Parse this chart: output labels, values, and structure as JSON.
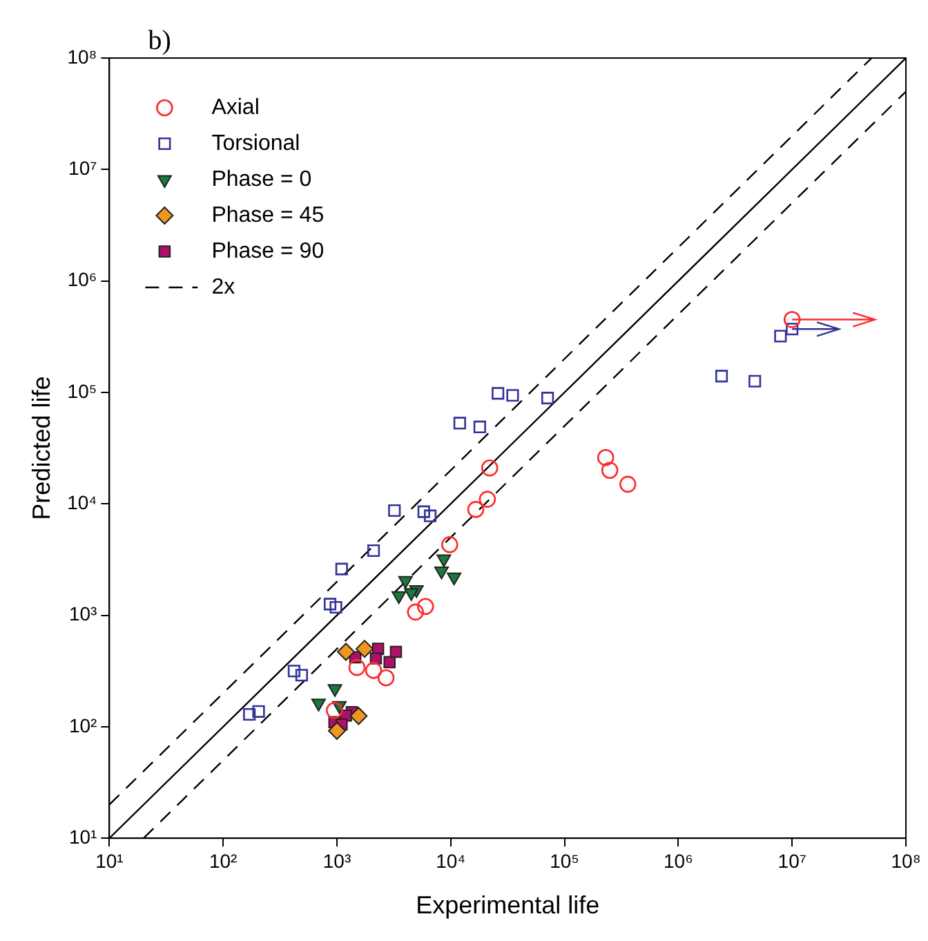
{
  "chart_data": {
    "type": "scatter",
    "title": "b)",
    "xlabel": "Experimental life",
    "ylabel": "Predicted life",
    "log": "xy",
    "legend": "top left",
    "grid": false,
    "xlim": [
      10,
      100000000
    ],
    "ylim": [
      10,
      100000000
    ],
    "xticks": [
      {
        "value": 10,
        "label": "10¹"
      },
      {
        "value": 100,
        "label": "10²"
      },
      {
        "value": 1000,
        "label": "10³"
      },
      {
        "value": 10000,
        "label": "10⁴"
      },
      {
        "value": 100000,
        "label": "10⁵"
      },
      {
        "value": 1000000,
        "label": "10⁶"
      },
      {
        "value": 10000000,
        "label": "10⁷"
      },
      {
        "value": 100000000,
        "label": "10⁸"
      }
    ],
    "yticks": [
      {
        "value": 10,
        "label": "10¹"
      },
      {
        "value": 100,
        "label": "10²"
      },
      {
        "value": 1000,
        "label": "10³"
      },
      {
        "value": 10000,
        "label": "10⁴"
      },
      {
        "value": 100000,
        "label": "10⁵"
      },
      {
        "value": 1000000,
        "label": "10⁶"
      },
      {
        "value": 10000000,
        "label": "10⁷"
      },
      {
        "value": 100000000,
        "label": "10⁸"
      }
    ],
    "series": [
      {
        "name": "Axial",
        "color": "#ff2a2a",
        "marker": "circle",
        "x": [
          10000000,
          230000,
          250000,
          360000,
          22000,
          21000,
          16600,
          9800,
          6000,
          4900,
          1500,
          2100,
          2700,
          950
        ],
        "values": [
          450000,
          26000,
          20000,
          15000,
          21000,
          11000,
          8900,
          4300,
          1200,
          1070,
          340,
          320,
          275,
          140
        ]
      },
      {
        "name": "Torsional",
        "color": "#333399",
        "marker": "square",
        "x": [
          10000000,
          7900000,
          2400000,
          4700000,
          26000,
          35000,
          71000,
          12000,
          18000,
          3200,
          5800,
          6600,
          2100,
          1100,
          870,
          980,
          420,
          490,
          170,
          205
        ],
        "values": [
          370000,
          320000,
          140000,
          126000,
          98000,
          94000,
          89000,
          53000,
          49000,
          8700,
          8500,
          7800,
          3800,
          2600,
          1260,
          1180,
          316,
          290,
          129,
          137
        ]
      },
      {
        "name": "Phase = 0",
        "color": "#1a7a3a",
        "marker": "triangle",
        "x": [
          8700,
          8300,
          10700,
          4000,
          5000,
          3500,
          4500,
          960,
          690,
          1050
        ],
        "values": [
          3200,
          2500,
          2200,
          2050,
          1700,
          1500,
          1600,
          220,
          163,
          155
        ]
      },
      {
        "name": "Phase = 45",
        "color": "#f0961e",
        "marker": "diamond",
        "x": [
          1200,
          1750,
          1550,
          1000
        ],
        "values": [
          470,
          500,
          125,
          92
        ]
      },
      {
        "name": "Phase = 90",
        "color": "#b0106a",
        "marker": "square",
        "x": [
          1450,
          2300,
          2200,
          2900,
          3300,
          1350,
          1200,
          950,
          1100
        ],
        "values": [
          420,
          500,
          410,
          380,
          470,
          135,
          126,
          110,
          105
        ]
      },
      {
        "type": "line",
        "color": "#000000",
        "line_style": "solid",
        "marker": "none",
        "x": [
          10,
          100000000
        ],
        "values": [
          10,
          100000000
        ]
      },
      {
        "type": "line",
        "name": "2x",
        "color": "#000000",
        "line_style": "dashed",
        "marker": "none",
        "x": [
          10,
          50000000
        ],
        "values": [
          20,
          100000000
        ]
      },
      {
        "type": "line",
        "color": "#000000",
        "line_style": "dashed",
        "marker": "none",
        "x": [
          20,
          100000000
        ],
        "values": [
          10,
          50000000
        ]
      }
    ]
  }
}
